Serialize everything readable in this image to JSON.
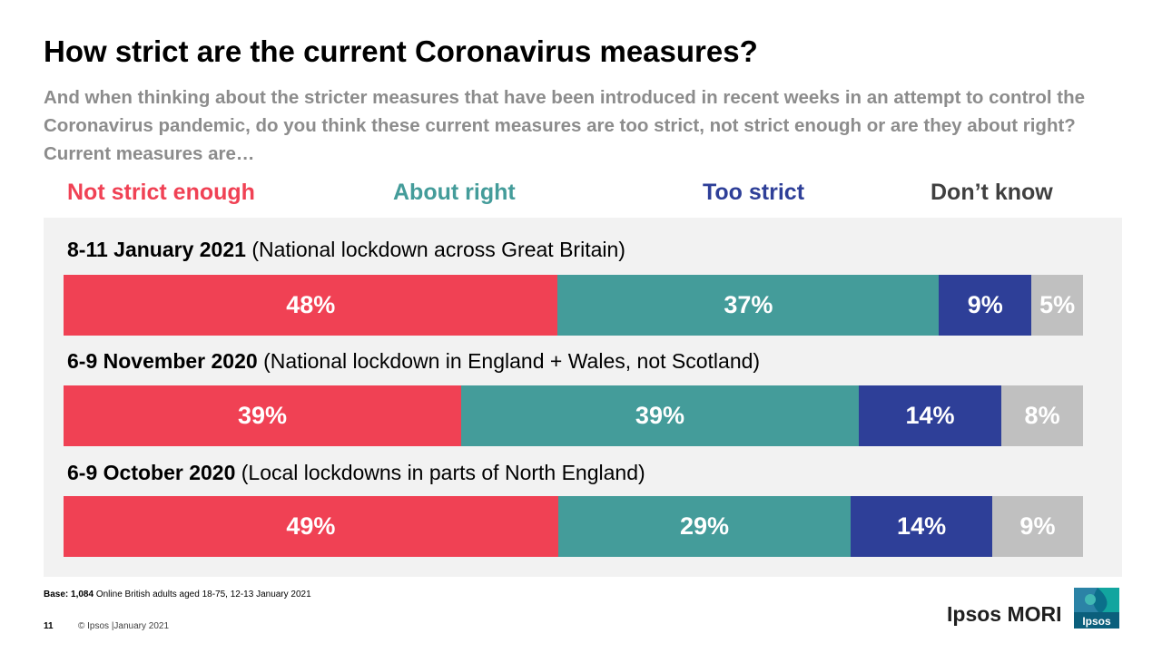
{
  "title": "How strict are the current Coronavirus measures?",
  "subtitle": "And when thinking about the stricter measures that have been introduced in recent weeks in an attempt to control the Coronavirus pandemic, do you think these current measures are too strict, not strict enough or are they about right? Current measures are…",
  "colors": {
    "not_strict_enough": "#f04154",
    "about_right": "#449c9a",
    "too_strict": "#2e3f98",
    "dont_know": "#c0c0c0"
  },
  "chart_data": {
    "type": "bar",
    "orientation": "horizontal",
    "stacked": true,
    "unit": "%",
    "legend": [
      "Not strict enough",
      "About right",
      "Too strict",
      "Don’t know"
    ],
    "legend_position": "top",
    "categories": [
      {
        "period": "8-11 January 2021",
        "context": "(National lockdown across Great Britain)"
      },
      {
        "period": "6-9 November 2020",
        "context": "(National lockdown in England + Wales, not Scotland)"
      },
      {
        "period": "6-9 October 2020",
        "context": "(Local lockdowns in parts of North England)"
      }
    ],
    "series": [
      {
        "name": "Not strict enough",
        "values": [
          48,
          39,
          49
        ],
        "labels": [
          "48%",
          "39%",
          "49%"
        ]
      },
      {
        "name": "About right",
        "values": [
          37,
          39,
          29
        ],
        "labels": [
          "37%",
          "39%",
          "29%"
        ]
      },
      {
        "name": "Too strict",
        "values": [
          9,
          14,
          14
        ],
        "labels": [
          "9%",
          "14%",
          "14%"
        ]
      },
      {
        "name": "Don’t know",
        "values": [
          5,
          8,
          9
        ],
        "labels": [
          "5%",
          "8%",
          "9%"
        ]
      }
    ]
  },
  "footer": {
    "base_label": "Base:",
    "base_count": "1,084",
    "base_text": "Online British adults aged 18-75, 12-13 January 2021",
    "page_number": "11",
    "copyright": "© Ipsos |January 2021",
    "brand": "Ipsos MORI",
    "logo_text": "Ipsos"
  }
}
